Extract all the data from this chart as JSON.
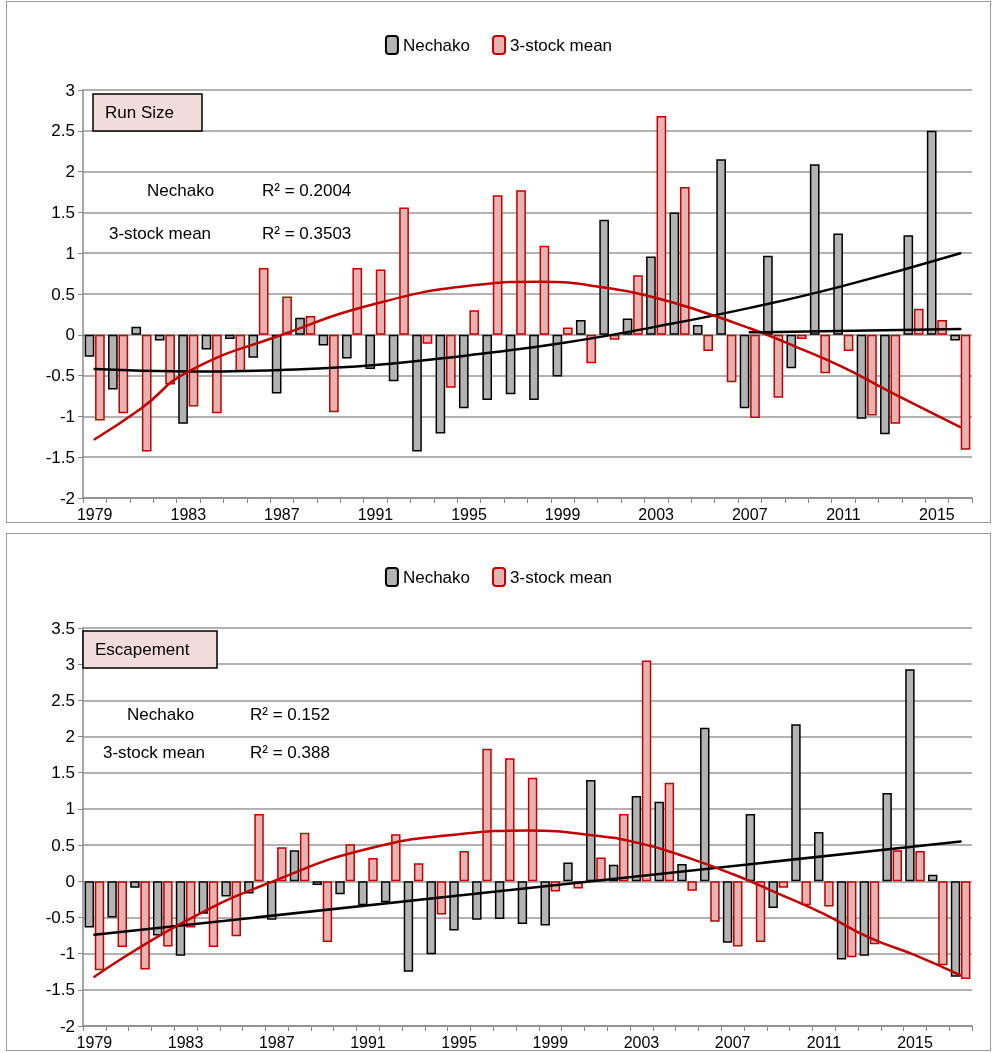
{
  "chart_data": [
    {
      "type": "bar",
      "title": "Run Size",
      "categories": [
        "1979",
        null,
        null,
        null,
        "1983",
        null,
        null,
        null,
        "1987",
        null,
        null,
        null,
        "1991",
        null,
        null,
        null,
        "1995",
        null,
        null,
        null,
        "1999",
        null,
        null,
        null,
        "2003",
        null,
        null,
        null,
        "2007",
        null,
        null,
        null,
        "2011",
        null,
        null,
        null,
        "2015",
        null
      ],
      "series": [
        {
          "name": "Nechako",
          "color": "#b3b3b3",
          "values": [
            -0.27,
            -0.67,
            0.1,
            -0.07,
            -1.09,
            -0.18,
            -0.05,
            -0.28,
            -0.72,
            0.21,
            -0.13,
            -0.29,
            -0.42,
            -0.57,
            -1.43,
            -1.21,
            -0.9,
            -0.8,
            -0.73,
            -0.8,
            -0.51,
            0.18,
            1.41,
            0.2,
            0.96,
            1.5,
            0.12,
            2.15,
            -0.9,
            0.97,
            -0.41,
            2.09,
            1.24,
            -1.03,
            -1.22,
            1.22,
            2.5,
            -0.07
          ]
        },
        {
          "name": "3-stock mean",
          "color": "#e6b3b3",
          "values": [
            -1.05,
            -0.96,
            -1.43,
            -0.61,
            -0.88,
            -0.96,
            -0.45,
            0.82,
            0.47,
            0.23,
            -0.95,
            0.82,
            0.8,
            1.56,
            -0.11,
            -0.65,
            0.3,
            1.71,
            1.77,
            1.09,
            0.09,
            -0.35,
            -0.06,
            0.73,
            2.68,
            1.81,
            -0.2,
            -0.58,
            -1.02,
            -0.77,
            -0.05,
            -0.47,
            -0.2,
            -0.99,
            -1.09,
            0.32,
            0.18,
            -1.41
          ]
        },
        {
          "type": "line",
          "color": "#000000",
          "values": [
            -0.42,
            null,
            null,
            null,
            -0.45,
            null,
            null,
            null,
            -0.43,
            null,
            null,
            null,
            -0.37,
            null,
            null,
            null,
            -0.25,
            null,
            null,
            null,
            -0.1,
            null,
            null,
            null,
            0.1,
            null,
            null,
            null,
            0.33,
            null,
            null,
            null,
            0.6,
            null,
            null,
            null,
            null,
            1.0
          ]
        },
        {
          "type": "line",
          "color": "#c00000",
          "values": [
            -1.28,
            null,
            -0.9,
            null,
            -0.45,
            null,
            null,
            null,
            0.0,
            null,
            null,
            null,
            0.38,
            null,
            null,
            null,
            0.6,
            null,
            null,
            0.65,
            null,
            null,
            0.57,
            null,
            0.45,
            null,
            0.28,
            null,
            0.08,
            null,
            -0.15,
            null,
            -0.4,
            null,
            -0.7,
            null,
            null,
            -1.13
          ]
        },
        {
          "type": "line",
          "color": "#000000",
          "values": [
            null,
            null,
            null,
            null,
            null,
            null,
            null,
            null,
            null,
            null,
            null,
            null,
            null,
            null,
            null,
            null,
            null,
            null,
            null,
            null,
            null,
            null,
            null,
            null,
            null,
            null,
            null,
            null,
            0.03,
            null,
            null,
            null,
            null,
            null,
            null,
            null,
            null,
            0.07
          ]
        }
      ],
      "annotations": [
        "Nechako",
        "R² = 0.2004",
        "3-stock mean",
        "R² = 0.3503"
      ],
      "ylim": [
        -2,
        3
      ],
      "yticks": [
        -2,
        -1.5,
        -1,
        -0.5,
        0,
        0.5,
        1,
        1.5,
        2,
        2.5,
        3
      ],
      "grid": "y",
      "legend": "top",
      "line_style": "solid",
      "marker": "none"
    },
    {
      "type": "bar",
      "title": "Escapement",
      "categories": [
        "1979",
        null,
        null,
        null,
        "1983",
        null,
        null,
        null,
        "1987",
        null,
        null,
        null,
        "1991",
        null,
        null,
        null,
        "1995",
        null,
        null,
        null,
        "1999",
        null,
        null,
        null,
        "2003",
        null,
        null,
        null,
        "2007",
        null,
        null,
        null,
        "2011",
        null,
        null,
        null,
        "2015",
        null,
        null
      ],
      "series": [
        {
          "name": "Nechako",
          "color": "#b3b3b3",
          "values": [
            -0.64,
            -0.5,
            -0.09,
            -0.75,
            -1.03,
            -0.45,
            -0.21,
            -0.17,
            -0.53,
            0.43,
            -0.05,
            -0.18,
            -0.33,
            -0.29,
            -1.25,
            -1.01,
            -0.68,
            -0.53,
            -0.52,
            -0.59,
            -0.61,
            0.26,
            1.4,
            0.23,
            1.18,
            1.1,
            0.24,
            2.12,
            -0.85,
            0.93,
            -0.37,
            2.17,
            0.68,
            -1.08,
            -1.03,
            1.22,
            2.93,
            0.09,
            -1.32
          ]
        },
        {
          "name": "3-stock mean",
          "color": "#e6b3b3",
          "values": [
            -1.23,
            -0.91,
            -1.22,
            -0.9,
            -0.64,
            -0.91,
            -0.76,
            0.93,
            0.47,
            0.67,
            -0.84,
            0.51,
            0.32,
            0.65,
            0.25,
            -0.46,
            0.42,
            1.83,
            1.7,
            1.43,
            -0.14,
            -0.1,
            0.33,
            0.93,
            3.05,
            1.36,
            -0.13,
            -0.56,
            -0.9,
            -0.84,
            -0.09,
            -0.33,
            -0.35,
            -1.05,
            -0.87,
            0.43,
            0.42,
            -1.16,
            -1.35
          ]
        },
        {
          "type": "line",
          "color": "#000000",
          "values": [
            -0.74,
            null,
            null,
            null,
            null,
            null,
            null,
            null,
            null,
            null,
            null,
            null,
            null,
            null,
            null,
            null,
            null,
            null,
            null,
            null,
            null,
            null,
            null,
            null,
            null,
            null,
            null,
            null,
            null,
            null,
            null,
            null,
            null,
            null,
            null,
            null,
            null,
            null,
            0.55
          ]
        },
        {
          "type": "line",
          "color": "#c00000",
          "values": [
            -1.32,
            null,
            null,
            null,
            -0.55,
            null,
            null,
            null,
            0.02,
            null,
            null,
            null,
            0.45,
            null,
            null,
            null,
            0.65,
            null,
            null,
            0.7,
            null,
            null,
            0.63,
            null,
            0.52,
            null,
            0.33,
            null,
            0.1,
            null,
            -0.17,
            null,
            -0.45,
            null,
            -0.78,
            null,
            -1.02,
            null,
            -1.3
          ]
        }
      ],
      "annotations": [
        "Nechako",
        "R² = 0.152",
        "3-stock mean",
        "R² = 0.388"
      ],
      "ylim": [
        -2,
        3.5
      ],
      "yticks": [
        -2,
        -1.5,
        -1,
        -0.5,
        0,
        0.5,
        1,
        1.5,
        2,
        2.5,
        3,
        3.5
      ],
      "grid": "y",
      "legend": "top",
      "line_style": "solid",
      "marker": "none"
    }
  ]
}
